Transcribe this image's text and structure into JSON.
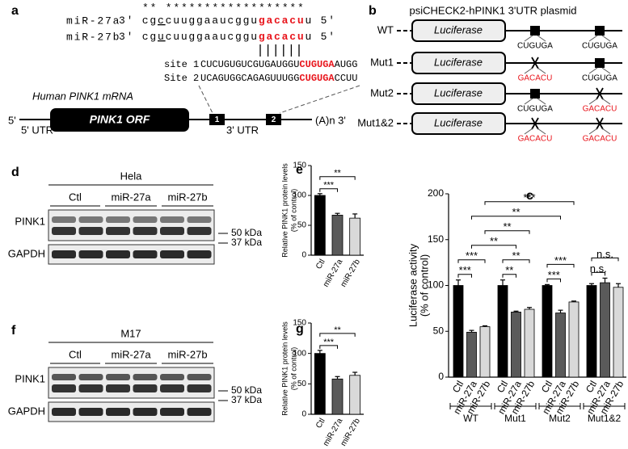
{
  "figure": {
    "panels": [
      "a",
      "b",
      "c",
      "d",
      "e",
      "f",
      "g"
    ],
    "a": {
      "stars": "** ******************",
      "mirnas": [
        {
          "name": "miR-27a",
          "parts": [
            "3' cg",
            "c",
            "cuuggaaucggu",
            "gacacu",
            "u 5'"
          ]
        },
        {
          "name": "miR-27b",
          "parts": [
            "3' cg",
            "u",
            "cuuggaaucggu",
            "gacacu",
            "u 5'"
          ]
        }
      ],
      "sites": [
        {
          "name": "site 1",
          "parts": [
            "CUCUGUGUCGUGAUGGU",
            "CUGUGA",
            "AUGG"
          ]
        },
        {
          "name": "Site 2",
          "parts": [
            "UCAGUGGCAGAGUUUGG",
            "CUGUGA",
            "CCUU"
          ]
        }
      ],
      "mrna_title": "Human PINK1 mRNA",
      "five": "5'",
      "orf": "PINK1 ORF",
      "boxes": [
        "1",
        "2"
      ],
      "tail": "(A)n 3'",
      "utr5": "5' UTR",
      "utr3": "3' UTR"
    },
    "b": {
      "title": "psiCHECK2-hPINK1 3'UTR plasmid",
      "luciferase": "Luciferase",
      "rows": [
        {
          "name": "WT",
          "sites": [
            {
              "label": "CUGUGA",
              "mutated": false
            },
            {
              "label": "CUGUGA",
              "mutated": false
            }
          ]
        },
        {
          "name": "Mut1",
          "sites": [
            {
              "label": "GACACU",
              "mutated": true
            },
            {
              "label": "CUGUGA",
              "mutated": false
            }
          ]
        },
        {
          "name": "Mut2",
          "sites": [
            {
              "label": "CUGUGA",
              "mutated": false
            },
            {
              "label": "GACACU",
              "mutated": true
            }
          ]
        },
        {
          "name": "Mut1&2",
          "sites": [
            {
              "label": "GACACU",
              "mutated": true
            },
            {
              "label": "GACACU",
              "mutated": true
            }
          ]
        }
      ]
    },
    "blots": [
      {
        "cell": "Hela",
        "lanes": [
          "Ctl",
          "miR-27a",
          "miR-27b"
        ],
        "proteins": [
          "PINK1",
          "GAPDH"
        ],
        "markers": [
          "50 kDa",
          "37 kDa"
        ]
      },
      {
        "cell": "M17",
        "lanes": [
          "Ctl",
          "miR-27a",
          "miR-27b"
        ],
        "proteins": [
          "PINK1",
          "GAPDH"
        ],
        "markers": [
          "50 kDa",
          "37 kDa"
        ]
      }
    ]
  },
  "chart_data": [
    {
      "type": "bar",
      "ylabel": [
        "Relative PINK1 protein levels",
        "(% of control)"
      ],
      "categories": [
        "Ctl",
        "miR-27a",
        "miR-27b"
      ],
      "values": [
        100,
        67,
        62
      ],
      "errors": [
        3,
        3,
        7
      ],
      "colors": [
        "#000000",
        "#5a5a5a",
        "#d9d9d9"
      ],
      "ylim": [
        0,
        150
      ],
      "yticks": [
        0,
        50,
        100,
        150
      ],
      "significance": [
        {
          "from": 0,
          "to": 1,
          "label": "***"
        },
        {
          "from": 0,
          "to": 2,
          "label": "**"
        }
      ]
    },
    {
      "type": "bar",
      "ylabel": [
        "Relative PINK1 protein levels",
        "(% of control)"
      ],
      "categories": [
        "Ctl",
        "miR-27a",
        "miR-27b"
      ],
      "values": [
        100,
        58,
        64
      ],
      "errors": [
        5,
        4,
        5
      ],
      "colors": [
        "#000000",
        "#5a5a5a",
        "#d9d9d9"
      ],
      "ylim": [
        0,
        150
      ],
      "yticks": [
        0,
        50,
        100,
        150
      ],
      "significance": [
        {
          "from": 0,
          "to": 1,
          "label": "***"
        },
        {
          "from": 0,
          "to": 2,
          "label": "**"
        }
      ]
    },
    {
      "type": "bar",
      "ylabel": [
        "Luciferase activity",
        "(% of control)"
      ],
      "categories": [
        "Ctl",
        "miR-27a",
        "miR-27b",
        "Ctl",
        "miR-27a",
        "miR-27b",
        "Ctl",
        "miR-27a",
        "miR-27b",
        "Ctl",
        "miR-27a",
        "miR-27b"
      ],
      "groups": [
        "WT",
        "Mut1",
        "Mut2",
        "Mut1&2"
      ],
      "values": [
        100,
        49,
        55,
        100,
        71,
        74,
        100,
        70,
        82,
        100,
        103,
        98
      ],
      "errors": [
        6,
        2,
        1,
        6,
        1,
        2,
        1,
        3,
        1,
        2,
        5,
        4
      ],
      "colors": [
        "#000000",
        "#5a5a5a",
        "#d9d9d9"
      ],
      "ylim": [
        0,
        200
      ],
      "yticks": [
        0,
        50,
        100,
        150,
        200
      ],
      "significance": [
        {
          "from": 0,
          "to": 1,
          "label": "***"
        },
        {
          "from": 0,
          "to": 2,
          "label": "***"
        },
        {
          "from": 3,
          "to": 4,
          "label": "**"
        },
        {
          "from": 3,
          "to": 5,
          "label": "**"
        },
        {
          "from": 6,
          "to": 7,
          "label": "***"
        },
        {
          "from": 6,
          "to": 8,
          "label": "***"
        },
        {
          "from": 9,
          "to": 10,
          "label": "n.s."
        },
        {
          "from": 9,
          "to": 11,
          "label": "n.s."
        },
        {
          "from": 1,
          "to": 4,
          "label": "**"
        },
        {
          "from": 2,
          "to": 5,
          "label": "**"
        },
        {
          "from": 1,
          "to": 7,
          "label": "**"
        },
        {
          "from": 2,
          "to": 8,
          "label": "***"
        }
      ]
    }
  ]
}
